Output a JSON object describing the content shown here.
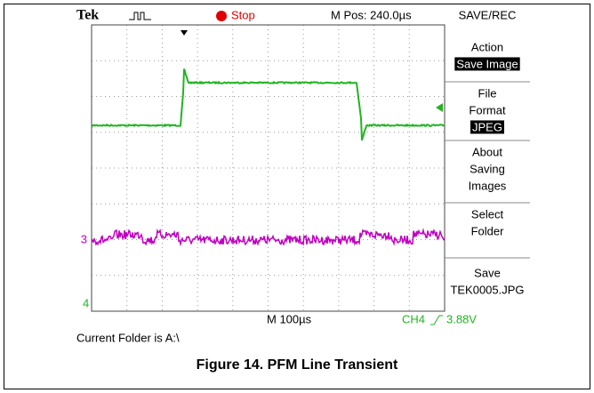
{
  "header": {
    "brand": "Tek",
    "status": "Stop",
    "position": "M Pos: 240.0µs"
  },
  "menu": {
    "title": "SAVE/REC",
    "items": [
      {
        "lines": [
          "Action"
        ],
        "value": "Save Image"
      },
      {
        "lines": [
          "File",
          "Format"
        ],
        "value": "JPEG"
      },
      {
        "lines": [
          "About",
          "Saving",
          "Images"
        ]
      },
      {
        "lines": [
          "Select",
          "Folder"
        ]
      },
      {
        "lines": [
          "Save",
          "TEK0005.JPG"
        ]
      }
    ]
  },
  "markers": [
    "3",
    "4"
  ],
  "footer": {
    "timebase": "M 100µs",
    "trigger_channel": "CH4",
    "trigger_level": "3.88V"
  },
  "status_line": "Current Folder is A:\\",
  "caption": "Figure 14. PFM Line Transient"
}
